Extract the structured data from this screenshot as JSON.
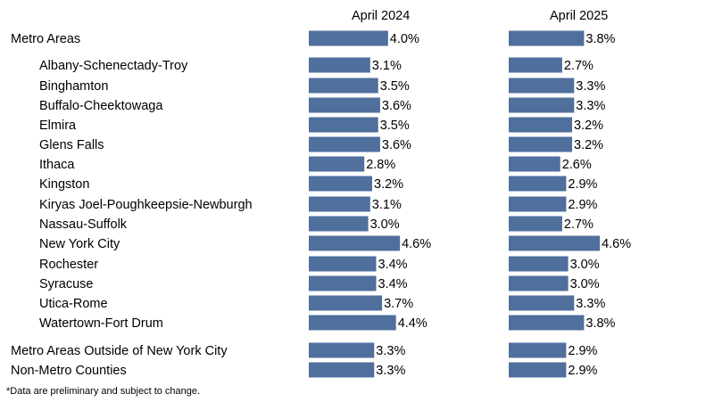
{
  "chart_data": {
    "type": "bar",
    "orientation": "horizontal",
    "series": [
      {
        "name": "April 2024",
        "values": [
          4.0,
          3.1,
          3.5,
          3.6,
          3.5,
          3.6,
          2.8,
          3.2,
          3.1,
          3.0,
          4.6,
          3.4,
          3.4,
          3.7,
          4.4,
          3.3,
          3.3
        ],
        "labels": [
          "4.0%",
          "3.1%",
          "3.5%",
          "3.6%",
          "3.5%",
          "3.6%",
          "2.8%",
          "3.2%",
          "3.1%",
          "3.0%",
          "4.6%",
          "3.4%",
          "3.4%",
          "3.7%",
          "4.4%",
          "3.3%",
          "3.3%"
        ]
      },
      {
        "name": "April 2025",
        "values": [
          3.8,
          2.7,
          3.3,
          3.3,
          3.2,
          3.2,
          2.6,
          2.9,
          2.9,
          2.7,
          4.6,
          3.0,
          3.0,
          3.3,
          3.8,
          2.9,
          2.9
        ],
        "labels": [
          "3.8%",
          "2.7%",
          "3.3%",
          "3.3%",
          "3.2%",
          "3.2%",
          "2.6%",
          "2.9%",
          "2.9%",
          "2.7%",
          "4.6%",
          "3.0%",
          "3.0%",
          "3.3%",
          "3.8%",
          "2.9%",
          "2.9%"
        ]
      }
    ],
    "categories": [
      "Metro Areas",
      "Albany-Schenectady-Troy",
      "Binghamton",
      "Buffalo-Cheektowaga",
      "Elmira",
      "Glens Falls",
      "Ithaca",
      "Kingston",
      "Kiryas Joel-Poughkeepsie-Newburgh",
      "Nassau-Suffolk",
      "New York City",
      "Rochester",
      "Syracuse",
      "Utica-Rome",
      "Watertown-Fort Drum",
      "Metro Areas Outside of New York City",
      "Non-Metro Counties"
    ],
    "indented": [
      false,
      true,
      true,
      true,
      true,
      true,
      true,
      true,
      true,
      true,
      true,
      true,
      true,
      true,
      true,
      false,
      false
    ],
    "bar_color": "#4f6f9c",
    "grid": false,
    "legend": "none"
  },
  "footnote": "*Data are preliminary and subject to change."
}
